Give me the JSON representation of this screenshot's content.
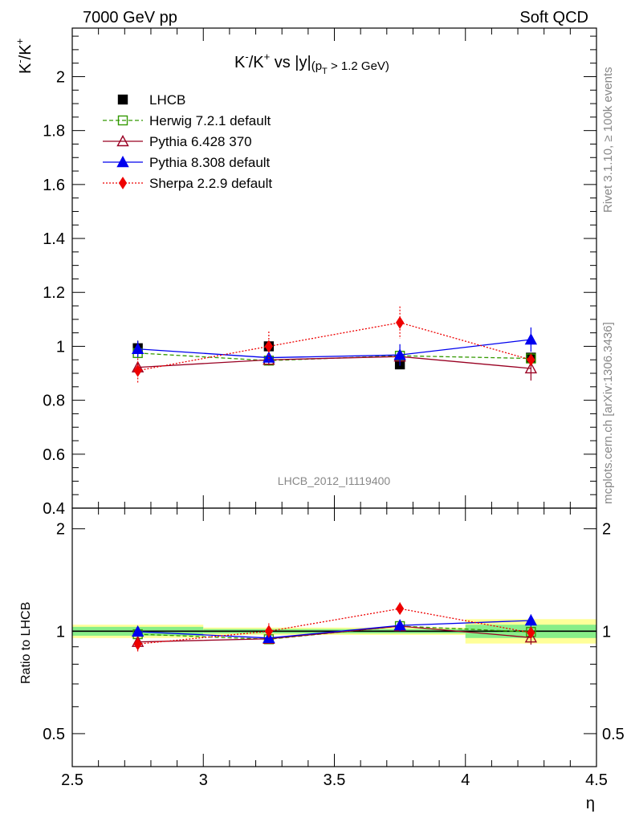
{
  "header": {
    "left": "7000 GeV pp",
    "right": "Soft QCD"
  },
  "side_labels": {
    "rivet": "Rivet 3.1.10, ≥ 100k events",
    "mcplots": "mcplots.cern.ch [arXiv:1306.3436]"
  },
  "watermark": "LHCB_2012_I1119400",
  "main_plot": {
    "title_main": "K",
    "title_sup1": "-",
    "title_mid": "/K",
    "title_sup2": "+",
    "title_rest": " vs |y|",
    "title_sub_open": "(p",
    "title_sub_T": "T",
    "title_sub_close": " > 1.2 GeV)",
    "ylabel_main": "K",
    "ylabel_sup1": "-",
    "ylabel_mid": "/K",
    "ylabel_sup2": "+"
  },
  "ratio_plot": {
    "ylabel": "Ratio to LHCB"
  },
  "xlabel": "η",
  "colors": {
    "lhcb": "#000000",
    "herwig": "#339900",
    "pythia6": "#990022",
    "pythia8": "#0000ee",
    "sherpa": "#ee0000",
    "band_inner": "#88ee88",
    "band_outer": "#ffff99"
  },
  "chart_data": [
    {
      "type": "scatter",
      "title": "K-/K+ vs |y|(pT > 1.2 GeV)",
      "xlabel": "η",
      "ylabel": "K-/K+",
      "xlim": [
        2.5,
        4.5
      ],
      "ylim": [
        0.4,
        2.18
      ],
      "y_ticks": [
        "0.4",
        "0.6",
        "0.8",
        "1",
        "1.2",
        "1.4",
        "1.6",
        "1.8",
        "2"
      ],
      "x_ticks": [
        "2.5",
        "3",
        "3.5",
        "4",
        "4.5"
      ],
      "legend_position": "top-left",
      "series": [
        {
          "name": "LHCB",
          "key": "lhcb",
          "style": "data",
          "marker": "square-filled",
          "x": [
            2.75,
            3.25,
            3.75,
            4.25
          ],
          "y": [
            0.993,
            1.0,
            0.933,
            0.958
          ],
          "err": [
            0.028,
            0.01,
            0.012,
            0.015
          ]
        },
        {
          "name": "Herwig 7.2.1 default",
          "key": "herwig",
          "style": "dashed",
          "marker": "square-open",
          "x": [
            2.75,
            3.25,
            3.75,
            4.25
          ],
          "y": [
            0.975,
            0.947,
            0.965,
            0.955
          ],
          "err": [
            0.02,
            0.02,
            0.02,
            0.02
          ]
        },
        {
          "name": "Pythia 6.428 370",
          "key": "pythia6",
          "style": "solid",
          "marker": "triangle-open",
          "x": [
            2.75,
            3.25,
            3.75,
            4.25
          ],
          "y": [
            0.922,
            0.95,
            0.962,
            0.918
          ],
          "err": [
            0.02,
            0.02,
            0.02,
            0.045
          ]
        },
        {
          "name": "Pythia 8.308 default",
          "key": "pythia8",
          "style": "solid",
          "marker": "triangle-filled",
          "x": [
            2.75,
            3.25,
            3.75,
            4.25
          ],
          "y": [
            0.99,
            0.958,
            0.968,
            1.025
          ],
          "err": [
            0.03,
            0.02,
            0.04,
            0.045
          ]
        },
        {
          "name": "Sherpa 2.2.9 default",
          "key": "sherpa",
          "style": "dotted",
          "marker": "diamond-filled",
          "x": [
            2.75,
            3.25,
            3.75,
            4.25
          ],
          "y": [
            0.91,
            1.0,
            1.088,
            0.95
          ],
          "err": [
            0.045,
            0.055,
            0.06,
            0.02
          ]
        }
      ]
    },
    {
      "type": "scatter",
      "xlabel": "η",
      "ylabel": "Ratio to LHCB",
      "xlim": [
        2.5,
        4.5
      ],
      "ylim": [
        0.4,
        2.3
      ],
      "yscale": "log",
      "y_ticks": [
        "0.5",
        "1",
        "2"
      ],
      "x_ticks": [
        "2.5",
        "3",
        "3.5",
        "4",
        "4.5"
      ],
      "data_bands": [
        {
          "x": [
            2.5,
            3.0
          ],
          "inner": [
            0.97,
            1.03
          ],
          "outer": [
            0.955,
            1.045
          ]
        },
        {
          "x": [
            3.0,
            3.5
          ],
          "inner": [
            0.985,
            1.015
          ],
          "outer": [
            0.975,
            1.025
          ]
        },
        {
          "x": [
            3.5,
            4.0
          ],
          "inner": [
            0.985,
            1.015
          ],
          "outer": [
            0.975,
            1.025
          ]
        },
        {
          "x": [
            4.0,
            4.5
          ],
          "inner": [
            0.955,
            1.045
          ],
          "outer": [
            0.92,
            1.085
          ]
        }
      ],
      "series": [
        {
          "name": "Herwig 7.2.1 default",
          "key": "herwig",
          "style": "dashed",
          "marker": "square-open",
          "x": [
            2.75,
            3.25,
            3.75,
            4.25
          ],
          "y": [
            0.98,
            0.947,
            1.035,
            0.995
          ],
          "err": [
            0.02,
            0.02,
            0.02,
            0.02
          ]
        },
        {
          "name": "Pythia 6.428 370",
          "key": "pythia6",
          "style": "solid",
          "marker": "triangle-open",
          "x": [
            2.75,
            3.25,
            3.75,
            4.25
          ],
          "y": [
            0.93,
            0.95,
            1.035,
            0.958
          ],
          "err": [
            0.02,
            0.02,
            0.02,
            0.045
          ]
        },
        {
          "name": "Pythia 8.308 default",
          "key": "pythia8",
          "style": "solid",
          "marker": "triangle-filled",
          "x": [
            2.75,
            3.25,
            3.75,
            4.25
          ],
          "y": [
            0.997,
            0.955,
            1.04,
            1.075
          ],
          "err": [
            0.03,
            0.02,
            0.04,
            0.045
          ]
        },
        {
          "name": "Sherpa 2.2.9 default",
          "key": "sherpa",
          "style": "dotted",
          "marker": "diamond-filled",
          "x": [
            2.75,
            3.25,
            3.75,
            4.25
          ],
          "y": [
            0.917,
            1.0,
            1.165,
            0.99
          ],
          "err": [
            0.045,
            0.055,
            0.05,
            0.02
          ]
        }
      ]
    }
  ]
}
